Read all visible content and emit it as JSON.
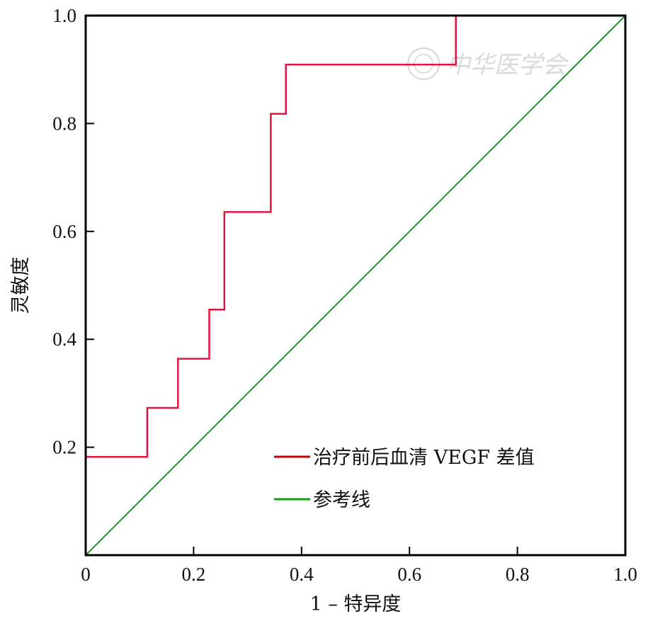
{
  "chart_data": {
    "type": "line",
    "xlabel": "1 – 特异度",
    "ylabel": "灵敏度",
    "xlim": [
      0,
      1
    ],
    "ylim": [
      0,
      1
    ],
    "x_ticks": [
      "0",
      "0.2",
      "0.4",
      "0.6",
      "0.8",
      "1.0"
    ],
    "y_ticks": [
      "0.2",
      "0.4",
      "0.6",
      "0.8",
      "1.0"
    ],
    "grid": false,
    "legend_position": "bottom-right",
    "series": [
      {
        "name": "治疗前后血清 VEGF 差值",
        "color": "#e0143c",
        "step": true,
        "points": [
          [
            0,
            0
          ],
          [
            0,
            0.182
          ],
          [
            0.114,
            0.182
          ],
          [
            0.114,
            0.273
          ],
          [
            0.171,
            0.273
          ],
          [
            0.171,
            0.364
          ],
          [
            0.229,
            0.364
          ],
          [
            0.229,
            0.455
          ],
          [
            0.257,
            0.455
          ],
          [
            0.257,
            0.636
          ],
          [
            0.343,
            0.636
          ],
          [
            0.343,
            0.818
          ],
          [
            0.371,
            0.818
          ],
          [
            0.371,
            0.909
          ],
          [
            0.686,
            0.909
          ],
          [
            0.686,
            1.0
          ],
          [
            1.0,
            1.0
          ]
        ]
      },
      {
        "name": "参考线",
        "color": "#10a010",
        "step": false,
        "points": [
          [
            0,
            0
          ],
          [
            1,
            1
          ]
        ]
      }
    ],
    "legend_colors": [
      "#c80000",
      "#10a010"
    ],
    "watermark": "中华医学会"
  }
}
